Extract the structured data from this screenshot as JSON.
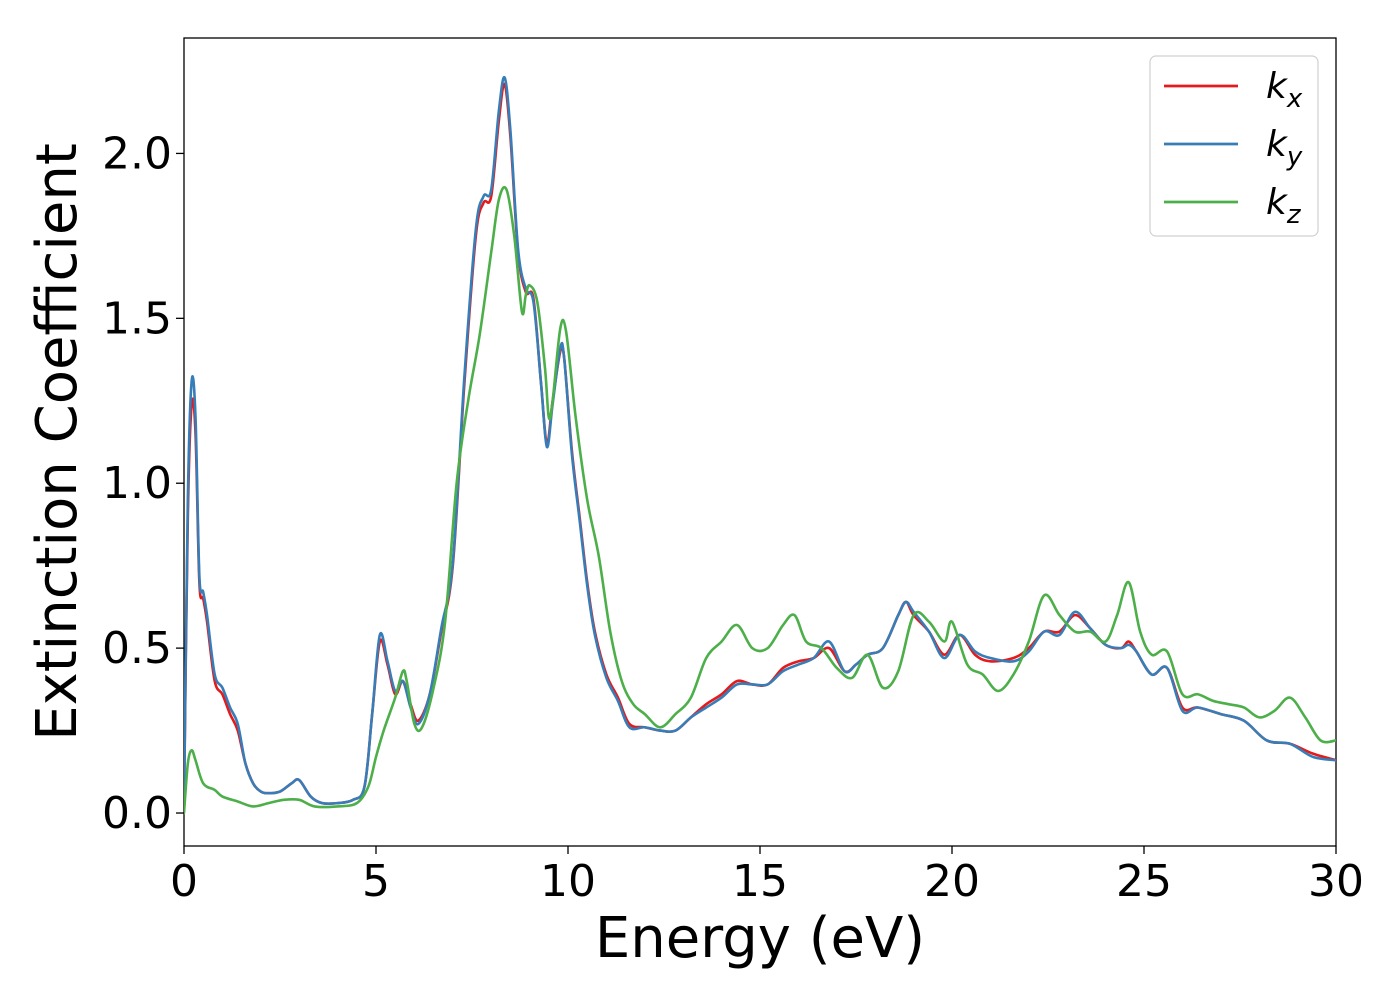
{
  "chart_data": {
    "type": "line",
    "xlabel": "Energy (eV)",
    "ylabel": "Extinction Coefficient",
    "xlim": [
      0,
      30
    ],
    "ylim": [
      -0.1,
      2.35
    ],
    "xticks": [
      0,
      5,
      10,
      15,
      20,
      25,
      30
    ],
    "yticks": [
      0.0,
      0.5,
      1.0,
      1.5,
      2.0
    ],
    "xtick_labels": [
      "0",
      "5",
      "10",
      "15",
      "20",
      "25",
      "30"
    ],
    "ytick_labels": [
      "0.0",
      "0.5",
      "1.0",
      "1.5",
      "2.0"
    ],
    "grid": false,
    "legend_position": "top-right",
    "series": [
      {
        "name": "kx",
        "label_main": "k",
        "label_sub": "x",
        "color": "#e41a1c",
        "x": [
          0,
          0.1,
          0.2,
          0.3,
          0.4,
          0.5,
          0.6,
          0.8,
          1.0,
          1.2,
          1.4,
          1.6,
          1.8,
          2.0,
          2.2,
          2.5,
          2.8,
          3.0,
          3.3,
          3.6,
          4.0,
          4.4,
          4.7,
          4.9,
          5.1,
          5.3,
          5.5,
          5.7,
          5.9,
          6.1,
          6.4,
          6.7,
          7.0,
          7.3,
          7.6,
          7.8,
          8.0,
          8.2,
          8.35,
          8.5,
          8.7,
          8.9,
          9.1,
          9.3,
          9.45,
          9.6,
          9.8,
          9.9,
          10.1,
          10.3,
          10.5,
          10.7,
          11.0,
          11.3,
          11.6,
          12.0,
          12.4,
          12.8,
          13.2,
          13.6,
          14.0,
          14.4,
          14.8,
          15.2,
          15.6,
          16.0,
          16.4,
          16.8,
          17.2,
          17.5,
          17.8,
          18.2,
          18.6,
          18.8,
          19.0,
          19.4,
          19.8,
          20.2,
          20.6,
          21.0,
          21.6,
          22.0,
          22.4,
          22.8,
          23.2,
          23.6,
          24.0,
          24.4,
          24.6,
          24.8,
          25.2,
          25.6,
          26.0,
          26.4,
          27.0,
          27.6,
          28.2,
          28.8,
          29.4,
          30.0
        ],
        "y": [
          0.02,
          0.9,
          1.24,
          1.15,
          0.7,
          0.65,
          0.58,
          0.4,
          0.36,
          0.3,
          0.25,
          0.15,
          0.09,
          0.065,
          0.06,
          0.065,
          0.09,
          0.1,
          0.05,
          0.03,
          0.03,
          0.04,
          0.08,
          0.3,
          0.52,
          0.45,
          0.36,
          0.4,
          0.33,
          0.28,
          0.36,
          0.55,
          0.75,
          1.3,
          1.75,
          1.85,
          1.87,
          2.1,
          2.21,
          2.05,
          1.7,
          1.58,
          1.56,
          1.3,
          1.12,
          1.25,
          1.4,
          1.38,
          1.1,
          0.9,
          0.7,
          0.55,
          0.42,
          0.35,
          0.27,
          0.26,
          0.25,
          0.25,
          0.29,
          0.33,
          0.36,
          0.4,
          0.39,
          0.39,
          0.44,
          0.46,
          0.47,
          0.5,
          0.43,
          0.45,
          0.48,
          0.5,
          0.6,
          0.64,
          0.6,
          0.55,
          0.48,
          0.54,
          0.48,
          0.46,
          0.47,
          0.5,
          0.55,
          0.55,
          0.6,
          0.56,
          0.51,
          0.5,
          0.52,
          0.49,
          0.42,
          0.44,
          0.32,
          0.32,
          0.3,
          0.28,
          0.22,
          0.21,
          0.18,
          0.16
        ]
      },
      {
        "name": "ky",
        "label_main": "k",
        "label_sub": "y",
        "color": "#377eb8",
        "x": [
          0,
          0.1,
          0.2,
          0.3,
          0.4,
          0.5,
          0.6,
          0.8,
          1.0,
          1.2,
          1.4,
          1.6,
          1.8,
          2.0,
          2.2,
          2.5,
          2.8,
          3.0,
          3.3,
          3.6,
          4.0,
          4.4,
          4.7,
          4.9,
          5.1,
          5.3,
          5.5,
          5.7,
          5.9,
          6.1,
          6.4,
          6.7,
          7.0,
          7.3,
          7.6,
          7.8,
          8.0,
          8.2,
          8.35,
          8.5,
          8.7,
          8.9,
          9.1,
          9.3,
          9.45,
          9.6,
          9.8,
          9.9,
          10.1,
          10.3,
          10.5,
          10.7,
          11.0,
          11.3,
          11.6,
          12.0,
          12.4,
          12.8,
          13.2,
          13.6,
          14.0,
          14.4,
          14.8,
          15.2,
          15.6,
          16.0,
          16.4,
          16.8,
          17.2,
          17.5,
          17.8,
          18.2,
          18.6,
          18.8,
          19.0,
          19.4,
          19.8,
          20.2,
          20.6,
          21.0,
          21.6,
          22.0,
          22.4,
          22.8,
          23.2,
          23.6,
          24.0,
          24.4,
          24.6,
          24.8,
          25.2,
          25.6,
          26.0,
          26.4,
          27.0,
          27.6,
          28.2,
          28.8,
          29.4,
          30.0
        ],
        "y": [
          0.02,
          0.95,
          1.31,
          1.2,
          0.72,
          0.67,
          0.6,
          0.42,
          0.38,
          0.32,
          0.27,
          0.15,
          0.09,
          0.065,
          0.06,
          0.065,
          0.09,
          0.1,
          0.05,
          0.03,
          0.03,
          0.04,
          0.08,
          0.3,
          0.54,
          0.46,
          0.37,
          0.4,
          0.32,
          0.27,
          0.36,
          0.56,
          0.76,
          1.32,
          1.77,
          1.87,
          1.89,
          2.13,
          2.23,
          2.07,
          1.71,
          1.59,
          1.55,
          1.3,
          1.11,
          1.24,
          1.41,
          1.38,
          1.09,
          0.89,
          0.69,
          0.54,
          0.41,
          0.34,
          0.26,
          0.26,
          0.25,
          0.25,
          0.29,
          0.32,
          0.35,
          0.39,
          0.39,
          0.39,
          0.43,
          0.45,
          0.47,
          0.52,
          0.43,
          0.45,
          0.48,
          0.5,
          0.6,
          0.64,
          0.61,
          0.55,
          0.47,
          0.54,
          0.49,
          0.47,
          0.46,
          0.49,
          0.55,
          0.54,
          0.61,
          0.56,
          0.51,
          0.5,
          0.51,
          0.49,
          0.42,
          0.44,
          0.31,
          0.32,
          0.3,
          0.28,
          0.22,
          0.21,
          0.17,
          0.16
        ]
      },
      {
        "name": "kz",
        "label_main": "k",
        "label_sub": "z",
        "color": "#4daf4a",
        "x": [
          0,
          0.1,
          0.2,
          0.3,
          0.5,
          0.8,
          1.0,
          1.4,
          1.8,
          2.2,
          2.6,
          3.0,
          3.4,
          4.0,
          4.5,
          4.8,
          5.0,
          5.2,
          5.5,
          5.7,
          5.8,
          6.0,
          6.2,
          6.5,
          6.8,
          7.1,
          7.4,
          7.7,
          8.0,
          8.2,
          8.4,
          8.6,
          8.8,
          8.9,
          9.0,
          9.2,
          9.4,
          9.5,
          9.6,
          9.8,
          9.95,
          10.2,
          10.5,
          10.8,
          11.1,
          11.4,
          11.7,
          12.0,
          12.4,
          12.8,
          13.2,
          13.6,
          14.0,
          14.4,
          14.8,
          15.2,
          15.6,
          15.9,
          16.2,
          16.6,
          17.0,
          17.4,
          17.8,
          18.2,
          18.6,
          19.0,
          19.4,
          19.8,
          20.0,
          20.4,
          20.8,
          21.2,
          21.6,
          22.0,
          22.4,
          22.8,
          23.2,
          23.6,
          24.0,
          24.3,
          24.6,
          24.9,
          25.2,
          25.6,
          26.0,
          26.4,
          26.8,
          27.2,
          27.6,
          28.0,
          28.4,
          28.8,
          29.2,
          29.6,
          30.0
        ],
        "y": [
          0.0,
          0.15,
          0.19,
          0.16,
          0.09,
          0.07,
          0.05,
          0.035,
          0.02,
          0.03,
          0.04,
          0.04,
          0.02,
          0.02,
          0.03,
          0.08,
          0.17,
          0.25,
          0.35,
          0.43,
          0.4,
          0.27,
          0.26,
          0.38,
          0.58,
          1.0,
          1.25,
          1.45,
          1.7,
          1.86,
          1.89,
          1.75,
          1.52,
          1.57,
          1.6,
          1.55,
          1.35,
          1.2,
          1.25,
          1.47,
          1.46,
          1.2,
          0.95,
          0.78,
          0.55,
          0.4,
          0.33,
          0.3,
          0.26,
          0.3,
          0.35,
          0.47,
          0.52,
          0.57,
          0.5,
          0.5,
          0.57,
          0.6,
          0.52,
          0.5,
          0.44,
          0.41,
          0.48,
          0.38,
          0.43,
          0.6,
          0.58,
          0.52,
          0.58,
          0.45,
          0.42,
          0.37,
          0.42,
          0.52,
          0.66,
          0.6,
          0.55,
          0.55,
          0.52,
          0.6,
          0.7,
          0.55,
          0.48,
          0.49,
          0.36,
          0.36,
          0.34,
          0.33,
          0.32,
          0.29,
          0.31,
          0.35,
          0.29,
          0.22,
          0.22
        ]
      }
    ]
  }
}
